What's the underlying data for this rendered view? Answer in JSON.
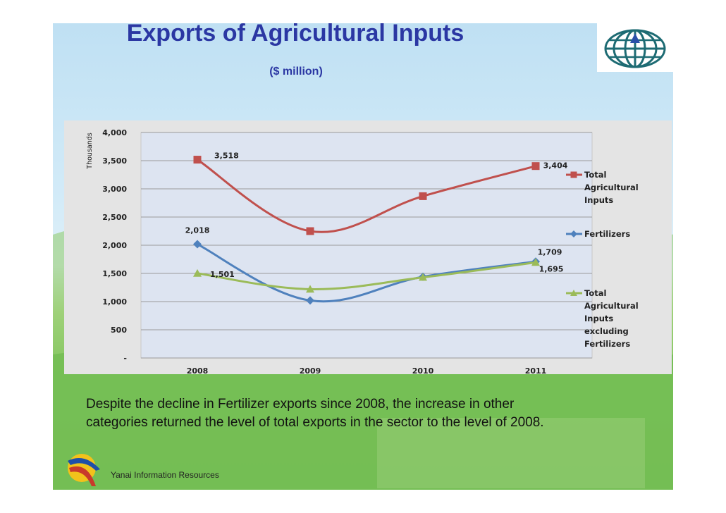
{
  "slide": {
    "title": "Exports of Agricultural Inputs",
    "subtitle": "($ million)",
    "caption_line1": "Despite the decline in Fertilizer exports since 2008, the increase in other",
    "caption_line2": "categories returned the level of total exports in the sector to the level of 2008.",
    "footer": "Yanai Information Resources",
    "logo_icon": "globe-arrow-icon",
    "footer_icon": "swoosh-logo-icon"
  },
  "chart_data": {
    "type": "line",
    "ylabel": "Thousands",
    "ylim": [
      0,
      4000
    ],
    "yticks": [
      "4,000",
      "3,500",
      "3,000",
      "2,500",
      "2,000",
      "1,500",
      "1,000",
      "500",
      "-"
    ],
    "categories": [
      "2008",
      "2009",
      "2010",
      "2011"
    ],
    "grid": true,
    "legend_position": "right",
    "series": [
      {
        "name": "Total Agricultural Inputs",
        "legend_lines": [
          "Total",
          "Agricultural",
          "Inputs"
        ],
        "color": "#c0504d",
        "marker": "square",
        "values": [
          3518,
          2250,
          2870,
          3404
        ],
        "labels": [
          "3,518",
          "",
          "",
          "3,404"
        ]
      },
      {
        "name": "Fertilizers",
        "legend_lines": [
          "Fertilizers"
        ],
        "color": "#4f81bd",
        "marker": "diamond",
        "values": [
          2018,
          1020,
          1440,
          1709
        ],
        "labels": [
          "2,018",
          "",
          "",
          "1,709"
        ]
      },
      {
        "name": "Total Agricultural Inputs excluding Fertilizers",
        "legend_lines": [
          "Total",
          "Agricultural",
          "Inputs",
          "excluding",
          "Fertilizers"
        ],
        "color": "#9bbb59",
        "marker": "triangle",
        "values": [
          1501,
          1220,
          1430,
          1695
        ],
        "labels": [
          "1,501",
          "",
          "",
          "1,695"
        ]
      }
    ]
  }
}
